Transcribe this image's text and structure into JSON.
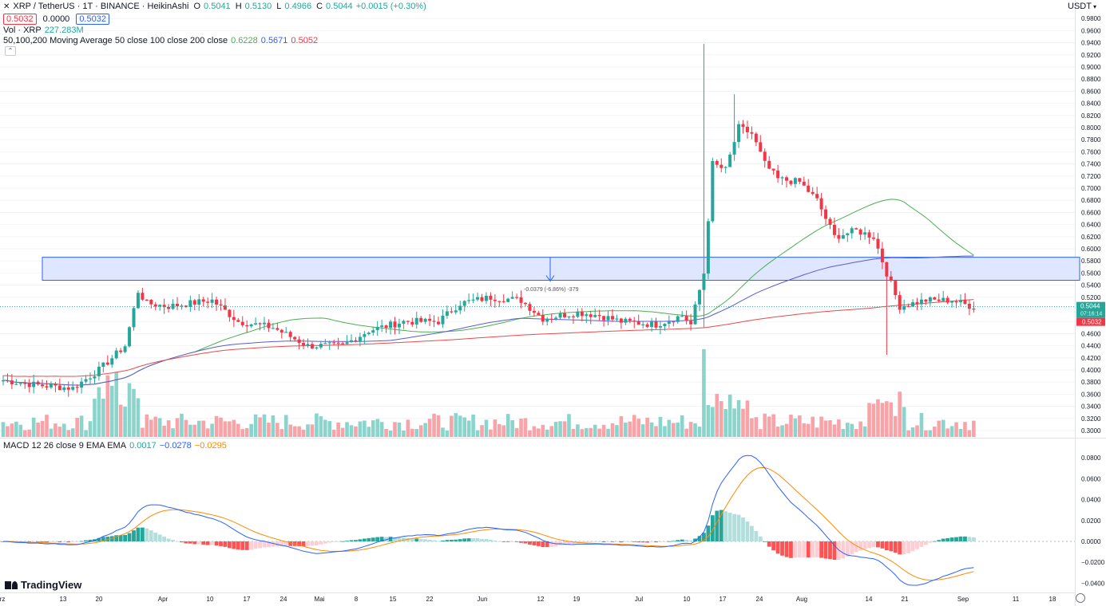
{
  "header": {
    "symbol_icon": "xrp-logo-icon",
    "title": "XRP / TetherUS · 1T · BINANCE · HeikinAshi",
    "o_label": "O",
    "o_value": "0.5041",
    "h_label": "H",
    "h_value": "0.5130",
    "l_label": "L",
    "l_value": "0.4966",
    "c_label": "C",
    "c_value": "0.5044",
    "change": "+0.0015 (+0.30%)",
    "bid": "0.5032",
    "spread": "0.0000",
    "ask": "0.5032"
  },
  "vol_legend": {
    "label": "Vol · XRP",
    "value": "227.283M"
  },
  "ma_legend": {
    "label": "50,100,200 Moving Average 50 close 100 close 200 close",
    "v50": "0.6228",
    "v100": "0.5671",
    "v200": "0.5052"
  },
  "macd_legend": {
    "label": "MACD 12 26 close 9 EMA EMA",
    "hist": "0.0017",
    "macd": "−0.0278",
    "signal": "−0.0295"
  },
  "price_axis": {
    "unit": "USDT",
    "ticks": [
      "0.9800",
      "0.9600",
      "0.9400",
      "0.9200",
      "0.9000",
      "0.8800",
      "0.8600",
      "0.8400",
      "0.8200",
      "0.8000",
      "0.7800",
      "0.7600",
      "0.7400",
      "0.7200",
      "0.7000",
      "0.6800",
      "0.6600",
      "0.6400",
      "0.6200",
      "0.6000",
      "0.5800",
      "0.5600",
      "0.5400",
      "0.5200",
      "0.5000",
      "0.4800",
      "0.4600",
      "0.4400",
      "0.4200",
      "0.4000",
      "0.3800",
      "0.3600",
      "0.3400",
      "0.3200",
      "0.3000"
    ],
    "last_price": "0.5044",
    "countdown": "07:16:14",
    "bid_tag": "0.5032"
  },
  "macd_axis": {
    "ticks": [
      "0.0800",
      "0.0600",
      "0.0400",
      "0.0200",
      "0.0000",
      "−0.0200",
      "−0.0400"
    ]
  },
  "time_axis": {
    "labels": [
      "rz",
      "13",
      "20",
      "Apr",
      "10",
      "17",
      "24",
      "Mai",
      "8",
      "15",
      "22",
      "Jun",
      "12",
      "19",
      "Jul",
      "10",
      "17",
      "24",
      "Aug",
      "14",
      "21",
      "Sep",
      "11",
      "18"
    ]
  },
  "measure_label": "-0.0379 (-6.86%) -379",
  "brand": "TradingView",
  "colors": {
    "up": "#26a69a",
    "down": "#f23645",
    "vol_up": "#8ad4cc",
    "vol_down": "#f7a3a8",
    "ma50": "#4caf50",
    "ma100": "#5b5bd6",
    "ma200": "#e84b4b",
    "macd": "#2962ff",
    "signal": "#ff8a00",
    "zone_fill": "#dfe6ff",
    "zone_stroke": "#2962ff"
  },
  "chart_data": {
    "type": "candlestick",
    "title": "XRP / TetherUS · 1T · BINANCE · HeikinAshi",
    "ylim": [
      0.3,
      0.98
    ],
    "zone": [
      0.548,
      0.586
    ],
    "anchors": [
      {
        "x": 0,
        "y": 0.383
      },
      {
        "x": 8,
        "y": 0.375
      },
      {
        "x": 16,
        "y": 0.37
      },
      {
        "x": 22,
        "y": 0.4
      },
      {
        "x": 28,
        "y": 0.44
      },
      {
        "x": 31,
        "y": 0.53
      },
      {
        "x": 33,
        "y": 0.51
      },
      {
        "x": 38,
        "y": 0.505
      },
      {
        "x": 48,
        "y": 0.515
      },
      {
        "x": 54,
        "y": 0.48
      },
      {
        "x": 62,
        "y": 0.47
      },
      {
        "x": 70,
        "y": 0.44
      },
      {
        "x": 78,
        "y": 0.44
      },
      {
        "x": 84,
        "y": 0.465
      },
      {
        "x": 92,
        "y": 0.48
      },
      {
        "x": 100,
        "y": 0.48
      },
      {
        "x": 105,
        "y": 0.51
      },
      {
        "x": 112,
        "y": 0.52
      },
      {
        "x": 119,
        "y": 0.515
      },
      {
        "x": 124,
        "y": 0.485
      },
      {
        "x": 132,
        "y": 0.495
      },
      {
        "x": 137,
        "y": 0.49
      },
      {
        "x": 142,
        "y": 0.48
      },
      {
        "x": 150,
        "y": 0.475
      },
      {
        "x": 156,
        "y": 0.49
      },
      {
        "x": 158,
        "y": 0.475
      },
      {
        "x": 161,
        "y": 0.56
      },
      {
        "x": 163,
        "y": 0.74
      },
      {
        "x": 166,
        "y": 0.73
      },
      {
        "x": 169,
        "y": 0.8
      },
      {
        "x": 172,
        "y": 0.79
      },
      {
        "x": 175,
        "y": 0.74
      },
      {
        "x": 178,
        "y": 0.715
      },
      {
        "x": 183,
        "y": 0.71
      },
      {
        "x": 187,
        "y": 0.68
      },
      {
        "x": 191,
        "y": 0.62
      },
      {
        "x": 196,
        "y": 0.63
      },
      {
        "x": 200,
        "y": 0.62
      },
      {
        "x": 203,
        "y": 0.56
      },
      {
        "x": 206,
        "y": 0.505
      },
      {
        "x": 212,
        "y": 0.515
      },
      {
        "x": 218,
        "y": 0.515
      },
      {
        "x": 223,
        "y": 0.504
      }
    ],
    "volume_ylim": [
      0,
      0.9
    ],
    "macd_ylim": [
      -0.042,
      0.09
    ]
  }
}
